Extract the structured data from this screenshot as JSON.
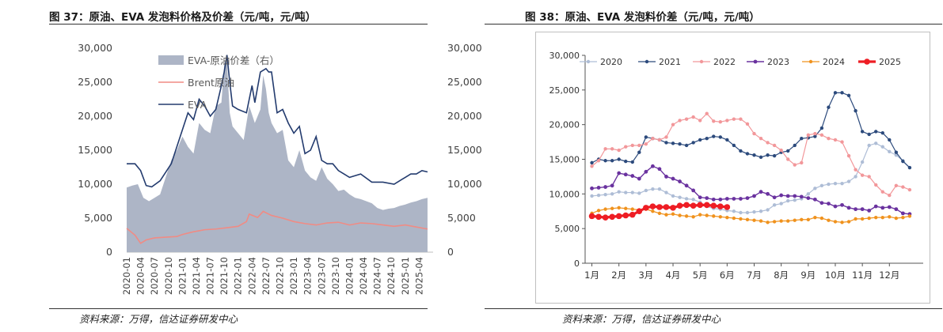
{
  "left": {
    "title": "图 37：原油、EVA 发泡料价格及价差（元/吨，元/吨）",
    "source": "资料来源：万得，信达证券研发中心"
  },
  "right": {
    "title": "图 38：原油、EVA 发泡料价差（元/吨，元/吨）",
    "source": "资料来源：万得，信达证券研发中心"
  },
  "chart_data": [
    {
      "type": "area+line",
      "xlabel": "",
      "ylabel": "",
      "ylim": [
        0,
        30000
      ],
      "y2lim": [
        0,
        30000
      ],
      "y_ticks": [
        "0",
        "5,000",
        "10,000",
        "15,000",
        "20,000",
        "25,000",
        "30,000"
      ],
      "y2_ticks": [
        "0",
        "5,000",
        "10,000",
        "15,000",
        "20,000",
        "25,000",
        "30,000"
      ],
      "x_ticks": [
        "2020-01",
        "2020-04",
        "2020-07",
        "2020-10",
        "2021-01",
        "2021-04",
        "2021-07",
        "2021-10",
        "2022-01",
        "2022-04",
        "2022-07",
        "2022-10",
        "2023-01",
        "2023-04",
        "2023-07",
        "2023-10",
        "2024-01",
        "2024-04",
        "2024-07",
        "2024-10",
        "2025-01",
        "2025-04"
      ],
      "legend_position": "top-center",
      "series": [
        {
          "name": "EVA-原油价差（右）",
          "kind": "area",
          "axis": "right",
          "color": "#adb5c6",
          "x": [
            2020.0,
            2020.1,
            2020.2,
            2020.3,
            2020.4,
            2020.5,
            2020.6,
            2020.7,
            2020.8,
            2020.9,
            2021.0,
            2021.1,
            2021.2,
            2021.3,
            2021.4,
            2021.5,
            2021.6,
            2021.7,
            2021.75,
            2021.8,
            2021.85,
            2021.9,
            2022.0,
            2022.1,
            2022.2,
            2022.3,
            2022.4,
            2022.45,
            2022.5,
            2022.55,
            2022.6,
            2022.7,
            2022.8,
            2022.9,
            2023.0,
            2023.1,
            2023.2,
            2023.3,
            2023.4,
            2023.5,
            2023.6,
            2023.7,
            2023.8,
            2023.9,
            2024.0,
            2024.1,
            2024.2,
            2024.3,
            2024.4,
            2024.5,
            2024.6,
            2024.7,
            2024.8,
            2024.9,
            2025.0,
            2025.1,
            2025.2,
            2025.3,
            2025.4
          ],
          "values": [
            9500,
            9800,
            10000,
            8000,
            7500,
            8000,
            8500,
            11000,
            13500,
            15000,
            17000,
            15500,
            14500,
            19000,
            18000,
            17500,
            21500,
            22000,
            27500,
            28000,
            20500,
            18500,
            17500,
            16500,
            21500,
            19000,
            21000,
            26000,
            24000,
            20500,
            19000,
            17500,
            18000,
            13500,
            12500,
            15000,
            12000,
            11000,
            10500,
            12500,
            10800,
            10000,
            9000,
            9200,
            8500,
            8000,
            7800,
            7500,
            7200,
            6500,
            6200,
            6400,
            6500,
            6800,
            7000,
            7300,
            7500,
            7800,
            8000
          ]
        },
        {
          "name": "Brent原油",
          "kind": "line",
          "axis": "left",
          "color": "#f08b84",
          "x": [
            2020.0,
            2020.15,
            2020.25,
            2020.35,
            2020.5,
            2020.7,
            2020.9,
            2021.0,
            2021.2,
            2021.4,
            2021.6,
            2021.8,
            2022.0,
            2022.15,
            2022.2,
            2022.35,
            2022.45,
            2022.6,
            2022.8,
            2023.0,
            2023.2,
            2023.4,
            2023.6,
            2023.8,
            2024.0,
            2024.2,
            2024.4,
            2024.6,
            2024.8,
            2025.0,
            2025.2,
            2025.4
          ],
          "values": [
            3500,
            2500,
            1300,
            1800,
            2100,
            2200,
            2300,
            2600,
            3000,
            3300,
            3400,
            3600,
            3800,
            4500,
            5600,
            5100,
            6000,
            5400,
            5000,
            4500,
            4200,
            4000,
            4300,
            4400,
            4000,
            4300,
            4200,
            4000,
            3800,
            4000,
            3700,
            3400
          ]
        },
        {
          "name": "EVA",
          "kind": "line",
          "axis": "left",
          "color": "#233b6e",
          "x": [
            2020.0,
            2020.15,
            2020.25,
            2020.35,
            2020.45,
            2020.6,
            2020.8,
            2020.9,
            2021.0,
            2021.1,
            2021.2,
            2021.3,
            2021.4,
            2021.5,
            2021.6,
            2021.7,
            2021.75,
            2021.8,
            2021.85,
            2021.9,
            2022.0,
            2022.15,
            2022.25,
            2022.3,
            2022.4,
            2022.5,
            2022.55,
            2022.6,
            2022.7,
            2022.8,
            2022.9,
            2023.0,
            2023.1,
            2023.2,
            2023.3,
            2023.4,
            2023.5,
            2023.6,
            2023.7,
            2023.8,
            2023.9,
            2024.0,
            2024.2,
            2024.4,
            2024.6,
            2024.8,
            2024.9,
            2025.0,
            2025.1,
            2025.2,
            2025.3,
            2025.4
          ],
          "values": [
            13000,
            13000,
            12000,
            9800,
            9600,
            10500,
            13000,
            15500,
            18000,
            20500,
            19500,
            22500,
            21500,
            20000,
            21000,
            24500,
            26500,
            29000,
            25000,
            21500,
            21000,
            20500,
            24500,
            22000,
            26500,
            27000,
            26500,
            26500,
            20500,
            21000,
            19000,
            17500,
            18500,
            14500,
            15000,
            17000,
            13500,
            13000,
            13000,
            12000,
            11500,
            11000,
            11500,
            10300,
            10300,
            10000,
            10500,
            11000,
            11500,
            11500,
            12000,
            11800
          ]
        }
      ]
    },
    {
      "type": "line",
      "xlabel": "",
      "ylabel": "",
      "ylim": [
        0,
        30000
      ],
      "y_ticks": [
        "0",
        "5,000",
        "10,000",
        "15,000",
        "20,000",
        "25,000",
        "30,000"
      ],
      "categories": [
        "1月",
        "2月",
        "3月",
        "4月",
        "5月",
        "6月",
        "7月",
        "8月",
        "9月",
        "10月",
        "11月",
        "12月"
      ],
      "legend_position": "top",
      "series": [
        {
          "name": "2020",
          "color": "#aebdd6",
          "width": 1.2,
          "marker": 2.2,
          "x": [
            1,
            1.25,
            1.5,
            1.75,
            2,
            2.25,
            2.5,
            2.75,
            3,
            3.25,
            3.5,
            3.75,
            4,
            4.25,
            4.5,
            4.75,
            5,
            5.25,
            5.5,
            5.75,
            6,
            6.25,
            6.5,
            6.75,
            7,
            7.25,
            7.5,
            7.75,
            8,
            8.25,
            8.5,
            8.75,
            9,
            9.25,
            9.5,
            9.75,
            10,
            10.25,
            10.5,
            10.75,
            11,
            11.25,
            11.5,
            11.75,
            12,
            12.25,
            12.5,
            12.75
          ],
          "values": [
            9700,
            9800,
            9900,
            10000,
            10300,
            10200,
            10200,
            10100,
            10500,
            10700,
            10700,
            10200,
            9700,
            9500,
            9300,
            9200,
            8800,
            8200,
            7900,
            7800,
            7600,
            7500,
            7300,
            7300,
            7400,
            7500,
            7700,
            8400,
            8600,
            9000,
            9100,
            9300,
            10000,
            10800,
            11200,
            11400,
            11500,
            11500,
            11800,
            12500,
            14600,
            17000,
            17300,
            16800,
            16100,
            15600,
            14800,
            13800
          ]
        },
        {
          "name": "2021",
          "color": "#2c4a7c",
          "width": 1.2,
          "marker": 2.2,
          "x": [
            1,
            1.25,
            1.5,
            1.75,
            2,
            2.25,
            2.5,
            2.75,
            3,
            3.25,
            3.5,
            3.75,
            4,
            4.25,
            4.5,
            4.75,
            5,
            5.25,
            5.5,
            5.75,
            6,
            6.25,
            6.5,
            6.75,
            7,
            7.25,
            7.5,
            7.75,
            8,
            8.25,
            8.5,
            8.75,
            9,
            9.25,
            9.5,
            9.75,
            10,
            10.25,
            10.5,
            10.75,
            11,
            11.25,
            11.5,
            11.75,
            12,
            12.25,
            12.5,
            12.75
          ],
          "values": [
            14500,
            15000,
            14800,
            14800,
            15000,
            14700,
            14600,
            16000,
            18200,
            18000,
            17800,
            17400,
            17300,
            17200,
            17000,
            17400,
            17800,
            18000,
            18300,
            18200,
            17800,
            17000,
            16200,
            15800,
            15600,
            15300,
            15600,
            15500,
            16000,
            16200,
            17000,
            18000,
            18100,
            18300,
            19500,
            22500,
            24600,
            24600,
            24200,
            22000,
            19000,
            18600,
            19000,
            18800,
            17800,
            16000,
            14700,
            13800
          ]
        },
        {
          "name": "2022",
          "color": "#f2979a",
          "width": 1.2,
          "marker": 2.2,
          "x": [
            1,
            1.25,
            1.5,
            1.75,
            2,
            2.25,
            2.5,
            2.75,
            3,
            3.25,
            3.5,
            3.75,
            4,
            4.25,
            4.5,
            4.75,
            5,
            5.25,
            5.5,
            5.75,
            6,
            6.25,
            6.5,
            6.75,
            7,
            7.25,
            7.5,
            7.75,
            8,
            8.25,
            8.5,
            8.75,
            9,
            9.25,
            9.5,
            9.75,
            10,
            10.25,
            10.5,
            10.75,
            11,
            11.25,
            11.5,
            11.75,
            12,
            12.25,
            12.5,
            12.75
          ],
          "values": [
            14000,
            14800,
            16500,
            16500,
            16300,
            16800,
            17000,
            17000,
            17200,
            18000,
            17800,
            18200,
            20000,
            20600,
            20800,
            21100,
            20600,
            21600,
            20500,
            20400,
            20600,
            20800,
            20800,
            20100,
            18700,
            18000,
            17400,
            17000,
            16300,
            15000,
            14200,
            14500,
            18500,
            18700,
            18500,
            18000,
            17800,
            17500,
            15500,
            13500,
            12700,
            12500,
            11300,
            10300,
            9800,
            11200,
            11000,
            10600
          ]
        },
        {
          "name": "2023",
          "color": "#6a329f",
          "width": 1.4,
          "marker": 2.4,
          "x": [
            1,
            1.25,
            1.5,
            1.75,
            2,
            2.25,
            2.5,
            2.75,
            3,
            3.25,
            3.5,
            3.75,
            4,
            4.25,
            4.5,
            4.75,
            5,
            5.25,
            5.5,
            5.75,
            6,
            6.25,
            6.5,
            6.75,
            7,
            7.25,
            7.5,
            7.75,
            8,
            8.25,
            8.5,
            8.75,
            9,
            9.25,
            9.5,
            9.75,
            10,
            10.25,
            10.5,
            10.75,
            11,
            11.25,
            11.5,
            11.75,
            12,
            12.25,
            12.5,
            12.75
          ],
          "values": [
            10800,
            10900,
            11000,
            11200,
            13000,
            12800,
            12600,
            12200,
            13200,
            14000,
            13600,
            12500,
            12200,
            11800,
            11200,
            10500,
            9500,
            9400,
            9200,
            9200,
            9300,
            9300,
            9300,
            9400,
            9700,
            10300,
            10000,
            9500,
            9800,
            9700,
            9700,
            9600,
            9400,
            9200,
            8700,
            8600,
            8200,
            8400,
            8000,
            7800,
            7800,
            7600,
            8200,
            8000,
            8100,
            7800,
            7200,
            7100
          ]
        },
        {
          "name": "2024",
          "color": "#f0921d",
          "width": 1.2,
          "marker": 2.2,
          "x": [
            1,
            1.25,
            1.5,
            1.75,
            2,
            2.25,
            2.5,
            2.75,
            3,
            3.25,
            3.5,
            3.75,
            4,
            4.25,
            4.5,
            4.75,
            5,
            5.25,
            5.5,
            5.75,
            6,
            6.25,
            6.5,
            6.75,
            7,
            7.25,
            7.5,
            7.75,
            8,
            8.25,
            8.5,
            8.75,
            9,
            9.25,
            9.5,
            9.75,
            10,
            10.25,
            10.5,
            10.75,
            11,
            11.25,
            11.5,
            11.75,
            12,
            12.25,
            12.5,
            12.75
          ],
          "values": [
            7200,
            7600,
            7800,
            7900,
            8000,
            7900,
            7800,
            7700,
            7800,
            7500,
            7200,
            7000,
            7100,
            6900,
            6800,
            6700,
            7000,
            6900,
            6800,
            6700,
            6600,
            6500,
            6400,
            6300,
            6200,
            6100,
            5900,
            6000,
            6100,
            6100,
            6200,
            6300,
            6300,
            6600,
            6500,
            6200,
            6000,
            5900,
            6000,
            6400,
            6400,
            6500,
            6600,
            6600,
            6700,
            6500,
            6600,
            6800
          ]
        },
        {
          "name": "2025",
          "color": "#ee1d24",
          "width": 3.2,
          "marker": 3.8,
          "x": [
            1,
            1.25,
            1.5,
            1.75,
            2,
            2.25,
            2.5,
            2.75,
            3,
            3.25,
            3.5,
            3.75,
            4,
            4.25,
            4.5,
            4.75,
            5,
            5.25,
            5.5,
            5.75,
            6
          ],
          "values": [
            6800,
            6700,
            6600,
            6700,
            6800,
            6900,
            7000,
            7500,
            8000,
            8200,
            8100,
            8100,
            8000,
            8300,
            8400,
            8300,
            8400,
            8400,
            8300,
            8200,
            8100
          ]
        }
      ]
    }
  ]
}
